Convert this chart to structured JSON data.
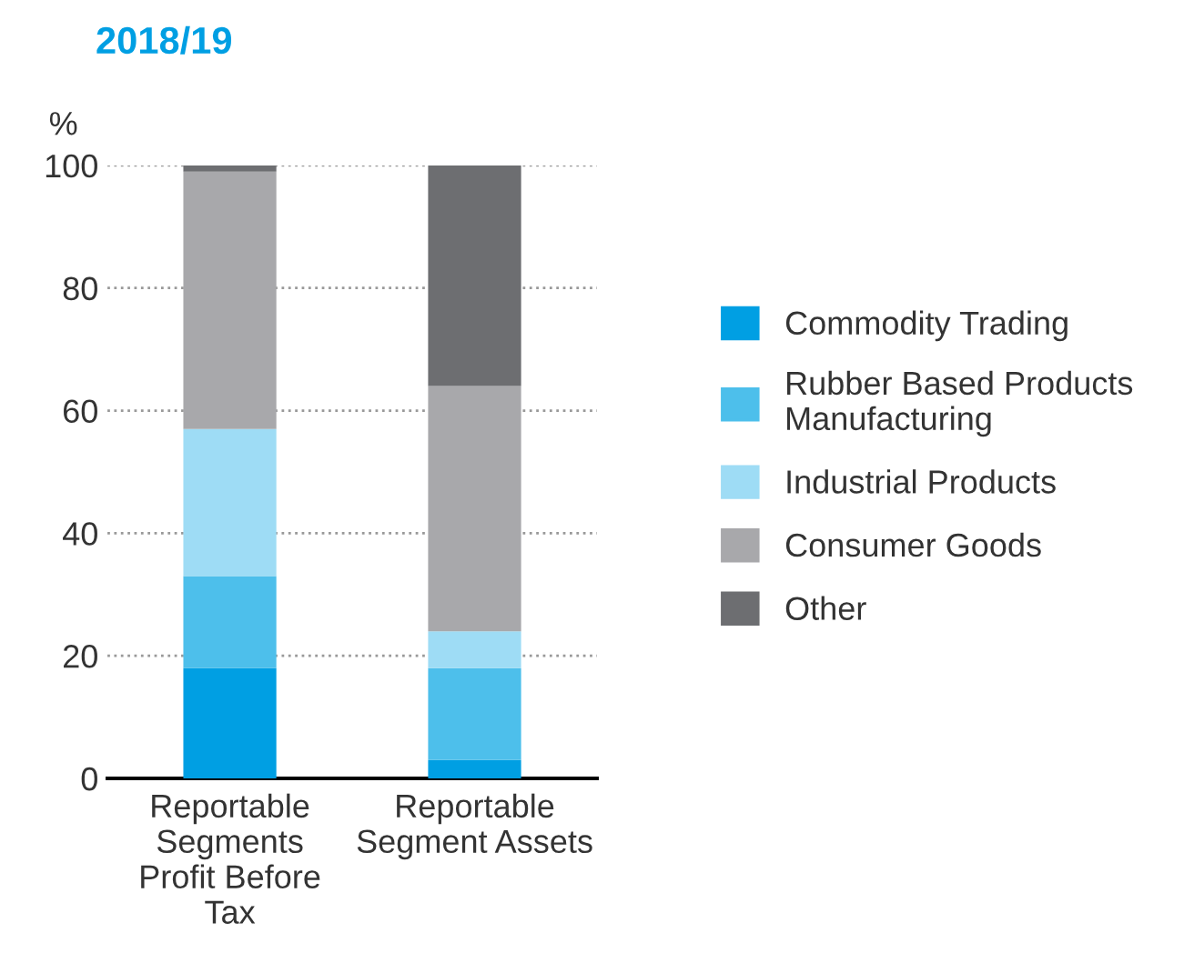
{
  "chart_data": {
    "type": "bar",
    "title": "2018/19",
    "ylabel": "%",
    "stacked": true,
    "categories": [
      "Reportable Segments Profit Before Tax",
      "Reportable Segment Assets"
    ],
    "series": [
      {
        "name": "Commodity Trading",
        "color": "#009fe3",
        "values": [
          18,
          3
        ]
      },
      {
        "name": "Rubber Based Products Manufacturing",
        "color": "#4dbfeb",
        "values": [
          15,
          15
        ]
      },
      {
        "name": "Industrial Products",
        "color": "#9edcf5",
        "values": [
          24,
          6
        ]
      },
      {
        "name": "Consumer Goods",
        "color": "#a8a8ab",
        "values": [
          42,
          40
        ]
      },
      {
        "name": "Other",
        "color": "#6d6e71",
        "values": [
          1,
          36
        ]
      }
    ],
    "ylim": [
      0,
      100
    ],
    "yticks": [
      0,
      20,
      40,
      60,
      80,
      100
    ],
    "grid": "y",
    "legend": "right"
  }
}
